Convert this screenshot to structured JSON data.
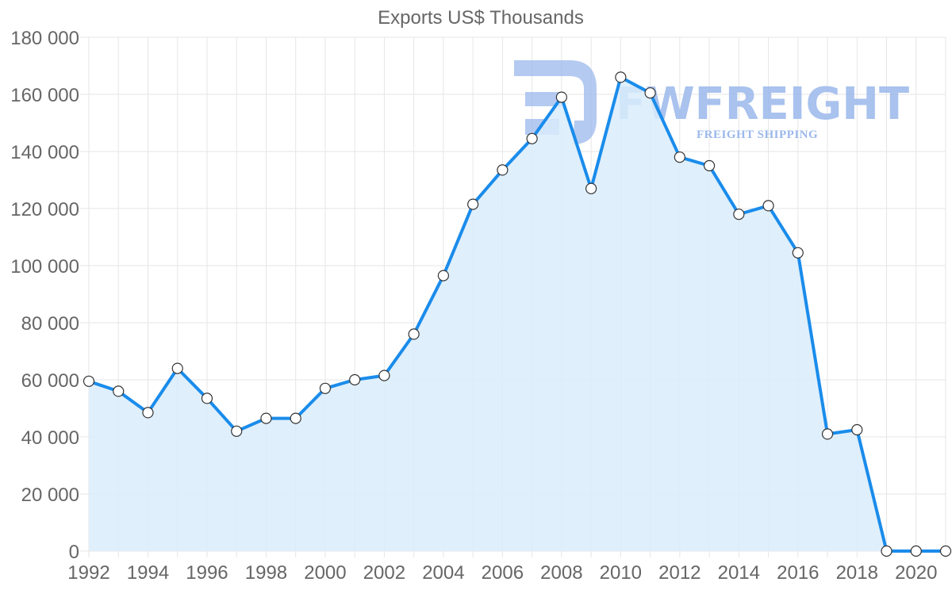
{
  "chart_data": {
    "type": "area",
    "title": "Exports US$ Thousands",
    "xlabel": "",
    "ylabel": "",
    "grid": true,
    "legend": "none",
    "xlim": [
      1992,
      2021
    ],
    "ylim": [
      0,
      180000
    ],
    "y_ticks": [
      0,
      20000,
      40000,
      60000,
      80000,
      100000,
      120000,
      140000,
      160000,
      180000
    ],
    "y_tick_labels": [
      "0",
      "20 000",
      "40 000",
      "60 000",
      "80 000",
      "100 000",
      "120 000",
      "140 000",
      "160 000",
      "180 000"
    ],
    "x_tick_labels": [
      "1992",
      "1994",
      "1996",
      "1998",
      "2000",
      "2002",
      "2004",
      "2006",
      "2008",
      "2010",
      "2012",
      "2014",
      "2016",
      "2018",
      "2020"
    ],
    "series": [
      {
        "name": "Exports US$ Thousands",
        "color": "#1a8ceb",
        "fill_color": "#d9ecfc",
        "x": [
          1992,
          1993,
          1994,
          1995,
          1996,
          1997,
          1998,
          1999,
          2000,
          2001,
          2002,
          2003,
          2004,
          2005,
          2006,
          2007,
          2008,
          2009,
          2010,
          2011,
          2012,
          2013,
          2014,
          2015,
          2016,
          2017,
          2018,
          2019,
          2020,
          2021
        ],
        "values": [
          59500,
          56000,
          48500,
          64000,
          53500,
          42000,
          46500,
          46500,
          57000,
          60000,
          61500,
          76000,
          96500,
          121500,
          133500,
          144500,
          159000,
          127000,
          166000,
          160500,
          138000,
          135000,
          118000,
          121000,
          104500,
          41000,
          42500,
          0,
          0,
          0
        ]
      }
    ]
  },
  "watermark": {
    "brand": "FWFREIGHT",
    "tagline": "FREIGHT SHIPPING",
    "color": "#9bb8ec"
  }
}
